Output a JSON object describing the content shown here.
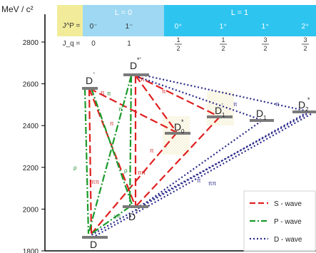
{
  "axis": {
    "unit": "MeV / c²",
    "ticks": [
      {
        "value": 1800,
        "label": "1800"
      },
      {
        "value": 2000,
        "label": "2000"
      },
      {
        "value": 2200,
        "label": "2200"
      },
      {
        "value": 2400,
        "label": "2400"
      },
      {
        "value": 2600,
        "label": "2600"
      },
      {
        "value": 2800,
        "label": "2800"
      }
    ]
  },
  "header": {
    "jp_label": "J^P =",
    "jq_label": "J_q =",
    "group_L0": "L = 0",
    "group_L1": "L = 1",
    "columns": [
      {
        "jp": "0⁻",
        "jq": "0"
      },
      {
        "jp": "1⁻",
        "jq": "1"
      },
      {
        "jp": "0⁺",
        "jq_num": "1",
        "jq_den": "2"
      },
      {
        "jp": "1⁺",
        "jq_num": "1",
        "jq_den": "2"
      },
      {
        "jp": "1⁺",
        "jq_num": "3",
        "jq_den": "2"
      },
      {
        "jp": "2⁺",
        "jq_num": "3",
        "jq_den": "2"
      }
    ]
  },
  "states": [
    {
      "id": "D",
      "label": "D",
      "sup": ""
    },
    {
      "id": "Dstar",
      "label": "D",
      "sup": "*"
    },
    {
      "id": "Dprime",
      "label": "D",
      "sup": "'"
    },
    {
      "id": "Dstarp",
      "label": "D",
      "sup": "*'"
    },
    {
      "id": "D0star",
      "label": "D",
      "sub": "0",
      "sup": "*"
    },
    {
      "id": "D1p",
      "label": "D",
      "sub": "1",
      "sup": ""
    },
    {
      "id": "D1",
      "label": "D",
      "sub": "1",
      "sup": ""
    },
    {
      "id": "D2star",
      "label": "D",
      "sub": "2",
      "sup": "*"
    }
  ],
  "transition_labels": [
    "π",
    "π",
    "π",
    "π",
    "ππ",
    "ρ",
    "ππ",
    "ρ",
    "γπ",
    "π",
    "π",
    "π",
    "π",
    "ππ",
    "π",
    "π"
  ],
  "legend": {
    "items": [
      {
        "label": "S - wave",
        "style": "dash",
        "color": "#e02020"
      },
      {
        "label": "P - wave",
        "style": "dashdot",
        "color": "#1a9a2a"
      },
      {
        "label": "D - wave",
        "style": "dot",
        "color": "#2a2a8a"
      }
    ]
  },
  "colors": {
    "level": "#7a7a7a",
    "swave": "#e02020",
    "pwave": "#1a9a2a",
    "dwave": "#2a2a8a",
    "header_label_bg": "#f2ec9a",
    "header_L0_bg": "#9ed8f2",
    "header_L1_bg": "#2ec4f0",
    "label_red": "#cc2a2a",
    "label_green": "#1a8a2a"
  }
}
